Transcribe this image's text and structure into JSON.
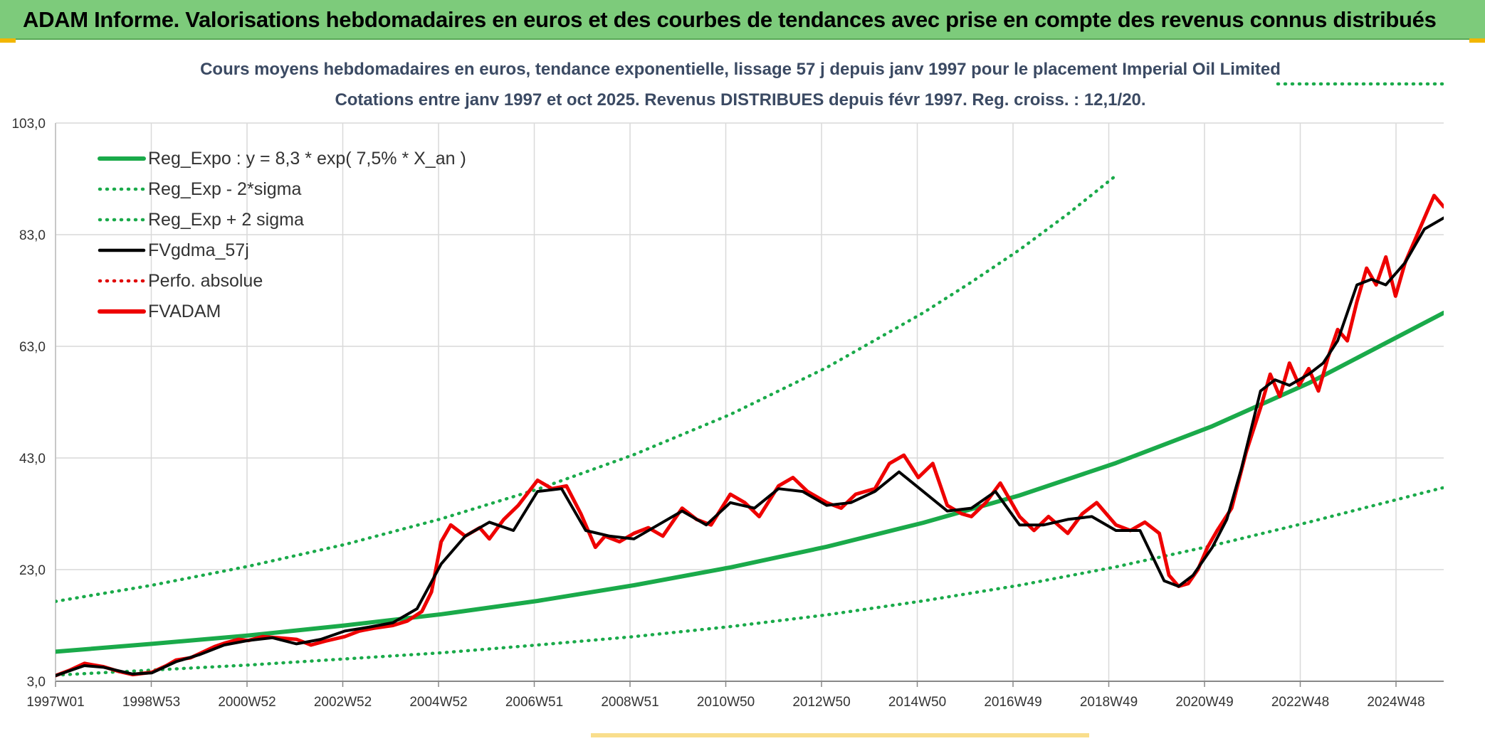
{
  "page": {
    "banner_title": "ADAM Informe. Valorisations hebdomadaires en euros et des courbes de tendances avec prise en compte des revenus connus distribués",
    "banner_color": "#7dcb7b",
    "accent_corner_color": "#f2b600"
  },
  "chart_data": {
    "type": "line",
    "title": "Cours moyens hebdomadaires en euros, tendance exponentielle, lissage 57 j depuis janv 1997 pour le placement Imperial Oil Limited",
    "subtitle": "Cotations entre janv 1997 et oct 2025. Revenus DISTRIBUES depuis févr 1997. Reg. croiss. : 12,1/20.",
    "xlabel": "",
    "ylabel": "",
    "x_tick_labels": [
      "1997W01",
      "1998W53",
      "2000W52",
      "2002W52",
      "2004W52",
      "2006W51",
      "2008W51",
      "2010W50",
      "2012W50",
      "2014W50",
      "2016W49",
      "2018W49",
      "2020W49",
      "2022W48",
      "2024W48"
    ],
    "y_tick_labels": [
      "3,0",
      "23,0",
      "43,0",
      "63,0",
      "83,0",
      "103,0"
    ],
    "y_ticks": [
      3,
      23,
      43,
      63,
      83,
      103
    ],
    "ylim": [
      3,
      103
    ],
    "xlim": [
      1997.0,
      2025.8
    ],
    "grid": true,
    "legend_position": "top-left",
    "legend": [
      {
        "label": "Reg_Expo : y = 8,3 * exp( 7,5% *  X_an )",
        "color": "#1aaa4a",
        "style": "solid-thick"
      },
      {
        "label": "Reg_Exp - 2*sigma",
        "color": "#1aaa4a",
        "style": "dotted"
      },
      {
        "label": "Reg_Exp + 2 sigma",
        "color": "#1aaa4a",
        "style": "dotted"
      },
      {
        "label": "FVgdma_57j",
        "color": "#000000",
        "style": "solid"
      },
      {
        "label": "Perfo. absolue",
        "color": "#e00000",
        "style": "dotted"
      },
      {
        "label": "FVADAM",
        "color": "#ee0000",
        "style": "solid-thick"
      }
    ],
    "series": [
      {
        "name": "Reg_Expo : y = 8,3 * exp( 7,5% *  X_an )",
        "color": "#1aaa4a",
        "x": [
          1997.0,
          1999.0,
          2001.0,
          2003.0,
          2005.0,
          2007.0,
          2009.0,
          2011.0,
          2013.0,
          2015.0,
          2017.0,
          2019.0,
          2021.0,
          2023.0,
          2025.8
        ],
        "values": [
          8.3,
          9.7,
          11.2,
          13.0,
          15.0,
          17.4,
          20.2,
          23.4,
          27.1,
          31.4,
          36.3,
          42.1,
          48.7,
          56.4,
          69.0
        ]
      },
      {
        "name": "Reg_Exp - 2*sigma",
        "color": "#1aaa4a",
        "x": [
          1997.0,
          1999.0,
          2001.0,
          2003.0,
          2005.0,
          2007.0,
          2009.0,
          2011.0,
          2013.0,
          2015.0,
          2017.0,
          2019.0,
          2021.0,
          2023.0,
          2025.8
        ],
        "values": [
          4.1,
          5.0,
          5.9,
          7.0,
          8.1,
          9.5,
          11.0,
          12.8,
          14.9,
          17.4,
          20.2,
          23.5,
          27.3,
          31.5,
          37.7
        ]
      },
      {
        "name": "Reg_Exp + 2 sigma",
        "color": "#1aaa4a",
        "x": [
          1997.0,
          1999.0,
          2001.0,
          2003.0,
          2005.0,
          2007.0,
          2009.0,
          2011.0,
          2013.0,
          2015.0,
          2016.0,
          2017.0,
          2018.0,
          2019.0
        ],
        "values": [
          17.3,
          20.2,
          23.6,
          27.5,
          32.1,
          37.4,
          43.6,
          50.8,
          59.2,
          69.0,
          74.5,
          80.3,
          86.7,
          93.6
        ]
      },
      {
        "name": "FVgdma_57j",
        "color": "#000000",
        "x": [
          1997.0,
          1997.6,
          1998.0,
          1998.6,
          1999.0,
          1999.5,
          2000.0,
          2000.5,
          2001.0,
          2001.5,
          2002.0,
          2002.5,
          2003.0,
          2003.5,
          2004.0,
          2004.5,
          2005.0,
          2005.5,
          2006.0,
          2006.5,
          2007.0,
          2007.5,
          2008.0,
          2008.5,
          2009.0,
          2009.5,
          2010.0,
          2010.5,
          2011.0,
          2011.5,
          2012.0,
          2012.5,
          2013.0,
          2013.5,
          2014.0,
          2014.5,
          2015.0,
          2015.5,
          2016.0,
          2016.5,
          2017.0,
          2017.5,
          2018.0,
          2018.5,
          2019.0,
          2019.5,
          2020.0,
          2020.3,
          2020.6,
          2021.0,
          2021.3,
          2021.6,
          2022.0,
          2022.3,
          2022.6,
          2023.0,
          2023.3,
          2023.6,
          2024.0,
          2024.3,
          2024.6,
          2025.0,
          2025.4,
          2025.8
        ],
        "values": [
          4.0,
          5.8,
          5.5,
          4.3,
          4.5,
          6.5,
          7.8,
          9.5,
          10.3,
          10.8,
          9.7,
          10.5,
          12.0,
          12.7,
          13.5,
          16.0,
          24.0,
          29.0,
          31.5,
          30.0,
          37.0,
          37.5,
          30.0,
          29.0,
          28.5,
          31.0,
          33.5,
          31.0,
          35.0,
          34.0,
          37.5,
          37.0,
          34.5,
          35.0,
          37.0,
          40.5,
          37.0,
          33.5,
          34.0,
          37.0,
          31.0,
          31.0,
          32.0,
          32.5,
          30.0,
          30.0,
          21.0,
          20.0,
          22.0,
          27.0,
          32.0,
          41.0,
          55.0,
          57.0,
          56.0,
          58.0,
          60.0,
          64.0,
          74.0,
          75.0,
          74.0,
          78.0,
          84.0,
          86.0
        ]
      },
      {
        "name": "FVADAM",
        "color": "#ee0000",
        "x": [
          1997.0,
          1997.3,
          1997.6,
          1998.0,
          1998.3,
          1998.6,
          1999.0,
          1999.3,
          1999.5,
          1999.8,
          2000.0,
          2000.3,
          2000.5,
          2000.8,
          2001.0,
          2001.3,
          2001.6,
          2002.0,
          2002.3,
          2002.6,
          2003.0,
          2003.3,
          2003.6,
          2004.0,
          2004.3,
          2004.6,
          2004.8,
          2005.0,
          2005.2,
          2005.5,
          2005.8,
          2006.0,
          2006.3,
          2006.6,
          2007.0,
          2007.3,
          2007.6,
          2007.9,
          2008.2,
          2008.4,
          2008.7,
          2009.0,
          2009.3,
          2009.6,
          2010.0,
          2010.3,
          2010.6,
          2011.0,
          2011.3,
          2011.6,
          2012.0,
          2012.3,
          2012.6,
          2013.0,
          2013.3,
          2013.6,
          2014.0,
          2014.3,
          2014.6,
          2014.9,
          2015.2,
          2015.5,
          2015.8,
          2016.0,
          2016.3,
          2016.6,
          2017.0,
          2017.3,
          2017.6,
          2018.0,
          2018.3,
          2018.6,
          2019.0,
          2019.3,
          2019.6,
          2019.9,
          2020.1,
          2020.3,
          2020.5,
          2020.7,
          2020.9,
          2021.1,
          2021.4,
          2021.7,
          2022.0,
          2022.2,
          2022.4,
          2022.6,
          2022.8,
          2023.0,
          2023.2,
          2023.4,
          2023.6,
          2023.8,
          2024.0,
          2024.2,
          2024.4,
          2024.6,
          2024.8,
          2025.0,
          2025.2,
          2025.4,
          2025.6,
          2025.8
        ],
        "values": [
          4.0,
          5.0,
          6.2,
          5.6,
          4.8,
          4.2,
          4.6,
          5.8,
          6.8,
          7.2,
          8.0,
          9.2,
          9.8,
          10.5,
          10.3,
          11.0,
          10.8,
          10.5,
          9.5,
          10.2,
          11.0,
          12.0,
          12.5,
          13.0,
          13.8,
          15.5,
          19.0,
          28.0,
          31.0,
          29.0,
          30.5,
          28.5,
          32.0,
          34.5,
          39.0,
          37.5,
          38.0,
          33.0,
          27.0,
          29.0,
          28.0,
          29.5,
          30.5,
          29.0,
          34.0,
          32.0,
          31.0,
          36.5,
          35.0,
          32.5,
          38.0,
          39.5,
          37.0,
          35.0,
          34.0,
          36.5,
          37.5,
          42.0,
          43.5,
          39.5,
          42.0,
          34.5,
          33.0,
          32.5,
          35.0,
          38.5,
          32.5,
          30.0,
          32.5,
          29.5,
          33.0,
          35.0,
          31.0,
          30.0,
          31.5,
          29.5,
          22.0,
          20.0,
          20.5,
          23.0,
          27.0,
          30.0,
          34.0,
          44.0,
          52.0,
          58.0,
          54.0,
          60.0,
          56.0,
          59.0,
          55.0,
          61.0,
          66.0,
          64.0,
          71.0,
          77.0,
          74.0,
          79.0,
          72.0,
          78.0,
          82.0,
          86.0,
          90.0,
          88.0
        ]
      }
    ]
  }
}
